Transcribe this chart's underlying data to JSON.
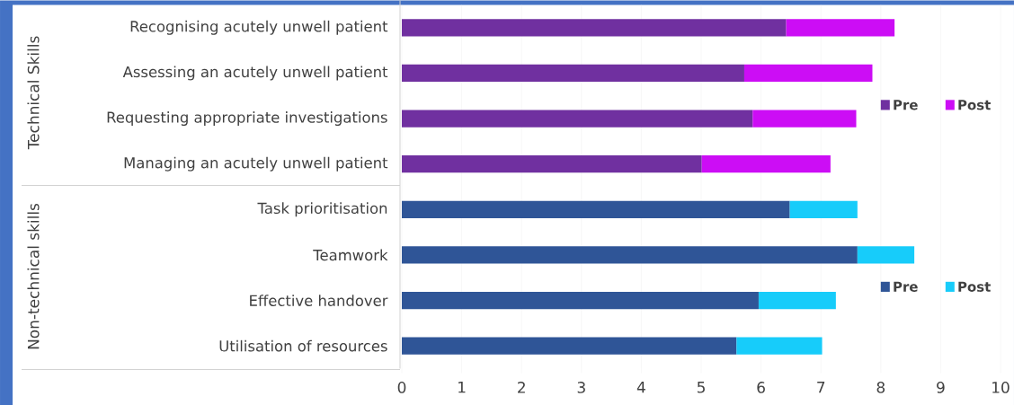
{
  "chart_data": {
    "type": "bar",
    "orientation": "horizontal",
    "stacked": true,
    "categories": [
      "Recognising acutely unwell patient",
      "Assessing an acutely unwell patient",
      "Requesting appropriate investigations",
      "Managing an acutely unwell patient",
      "Task prioritisation",
      "Teamwork",
      "Effective handover",
      "Utilisation of resources"
    ],
    "annotations": [
      "Technical Skills",
      "Non-technical skills"
    ],
    "series": [
      {
        "name": "Pre",
        "color": "#7030a0",
        "values": [
          6.42,
          5.72,
          5.86,
          5.01,
          null,
          null,
          null,
          null
        ]
      },
      {
        "name": "Post",
        "color": "#cc0df5",
        "values": [
          1.81,
          2.14,
          1.73,
          2.15,
          null,
          null,
          null,
          null
        ]
      },
      {
        "name": "Pre",
        "color": "#2f5597",
        "values": [
          null,
          null,
          null,
          null,
          6.48,
          7.61,
          5.96,
          5.59
        ]
      },
      {
        "name": "Post",
        "color": "#17ccfa",
        "values": [
          null,
          null,
          null,
          null,
          1.13,
          0.95,
          1.29,
          1.43
        ]
      }
    ],
    "xlim": [
      0,
      10
    ],
    "xticks": [
      0,
      1,
      2,
      3,
      4,
      5,
      6,
      7,
      8,
      9,
      10
    ],
    "grid": "x",
    "legend": "right"
  }
}
